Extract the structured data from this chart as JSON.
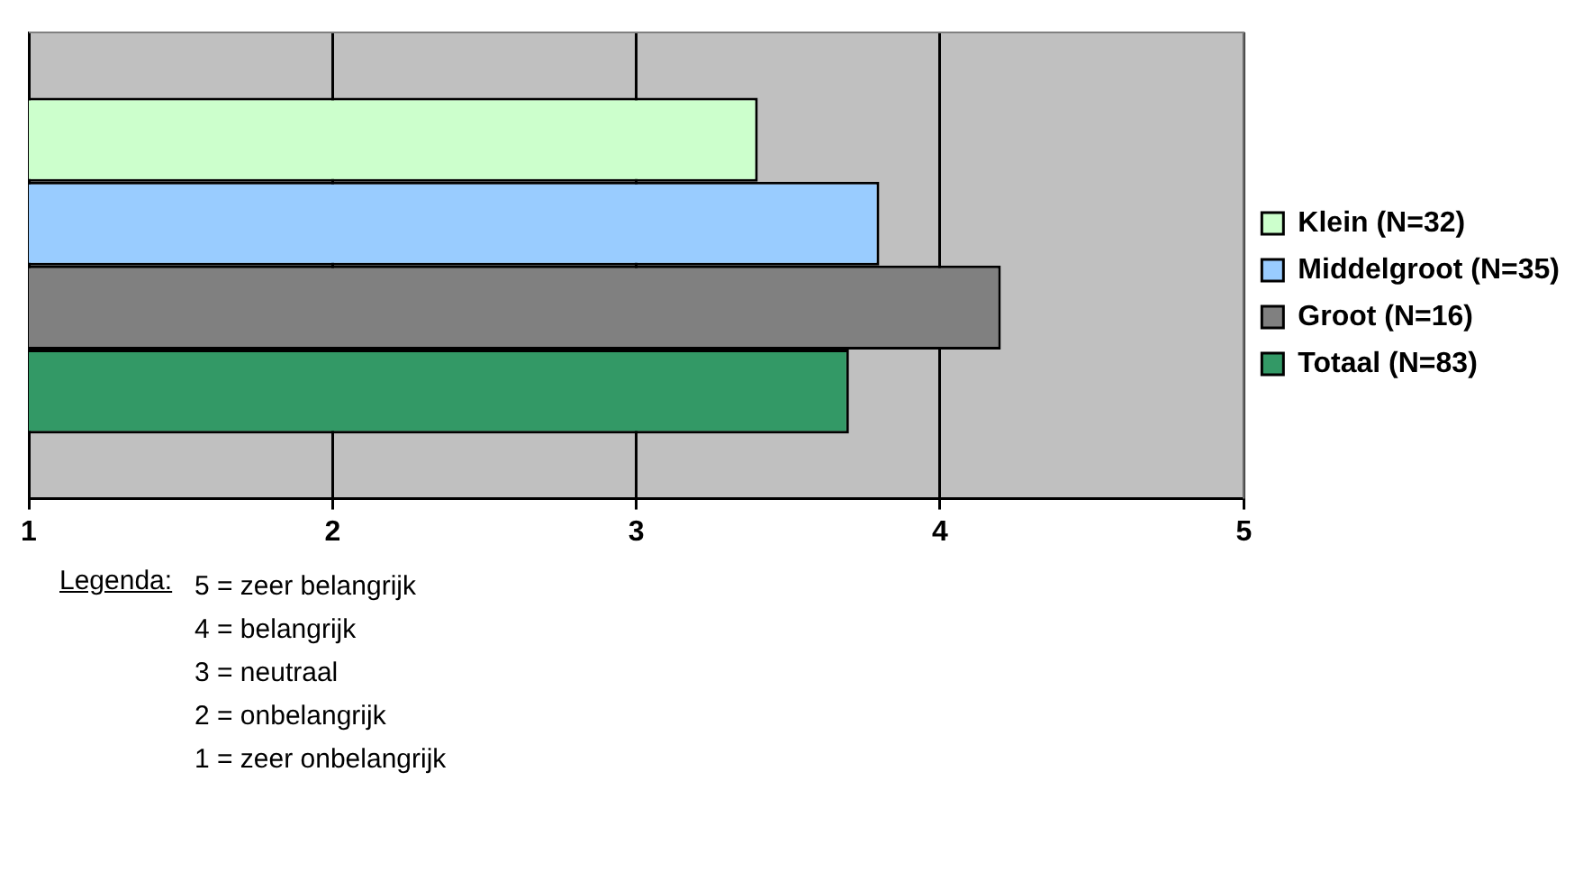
{
  "chart_data": {
    "type": "bar",
    "orientation": "horizontal",
    "categories": [
      null
    ],
    "series": [
      {
        "name": "Klein (N=32)",
        "color": "#ccffcc",
        "values": [
          3.4
        ]
      },
      {
        "name": "Middelgroot (N=35)",
        "color": "#99ccff",
        "values": [
          3.8
        ]
      },
      {
        "name": "Groot (N=16)",
        "color": "#808080",
        "values": [
          4.2
        ]
      },
      {
        "name": "Totaal (N=83)",
        "color": "#339966",
        "values": [
          3.7
        ]
      }
    ],
    "xlim": [
      1,
      5
    ],
    "xticks": [
      1,
      2,
      3,
      4,
      5
    ],
    "grid": "x",
    "legend": "right",
    "annotations": [
      "Legenda:",
      "5 = zeer belangrijk",
      "4 = belangrijk",
      "3 = neutraal",
      "2 = onbelangrijk",
      "1 = zeer onbelangrijk"
    ]
  }
}
